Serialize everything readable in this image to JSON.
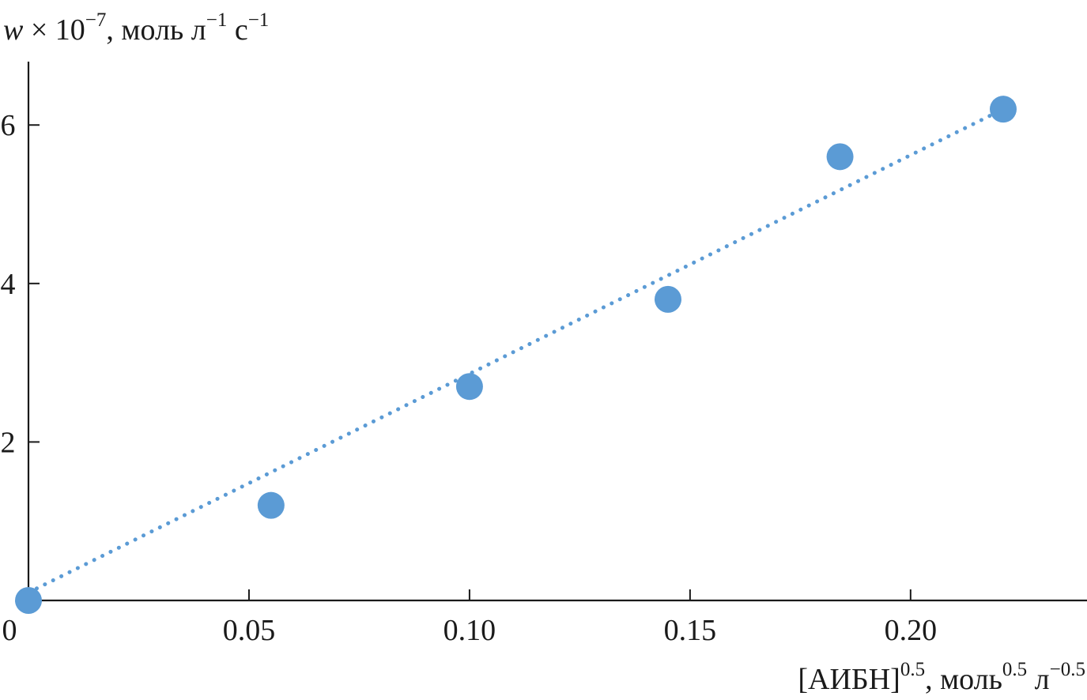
{
  "chart_data": {
    "type": "scatter",
    "ylabel": {
      "var": "w",
      "mult": " × 10",
      "mult_exp": "−7",
      "unit_a": ", моль л",
      "unit_a_exp": "−1",
      "unit_b": " с",
      "unit_b_exp": "−1"
    },
    "xlabel": {
      "base": "[АИБН]",
      "base_exp": "0.5",
      "unit_a": ", моль",
      "unit_a_exp": "0.5",
      "unit_b": " л",
      "unit_b_exp": "−0.5"
    },
    "xlim": [
      0,
      0.24
    ],
    "ylim": [
      0,
      6.8
    ],
    "x_ticks": [
      {
        "value": 0,
        "label": "0"
      },
      {
        "value": 0.05,
        "label": "0.05"
      },
      {
        "value": 0.1,
        "label": "0.10"
      },
      {
        "value": 0.15,
        "label": "0.15"
      },
      {
        "value": 0.2,
        "label": "0.20"
      }
    ],
    "y_ticks": [
      {
        "value": 2,
        "label": "2"
      },
      {
        "value": 4,
        "label": "4"
      },
      {
        "value": 6,
        "label": "6"
      }
    ],
    "series": [
      {
        "color": "#5b9bd5",
        "points": [
          {
            "x": 0.0,
            "y": 0.0
          },
          {
            "x": 0.055,
            "y": 1.2
          },
          {
            "x": 0.1,
            "y": 2.7
          },
          {
            "x": 0.145,
            "y": 3.8
          },
          {
            "x": 0.184,
            "y": 5.6
          },
          {
            "x": 0.221,
            "y": 6.2
          }
        ]
      }
    ],
    "trendline": {
      "style": "dotted",
      "color": "#5b9bd5",
      "from": {
        "x": 0.0,
        "y": 0.1
      },
      "to": {
        "x": 0.221,
        "y": 6.2
      }
    },
    "grid": false,
    "legend": "none"
  }
}
